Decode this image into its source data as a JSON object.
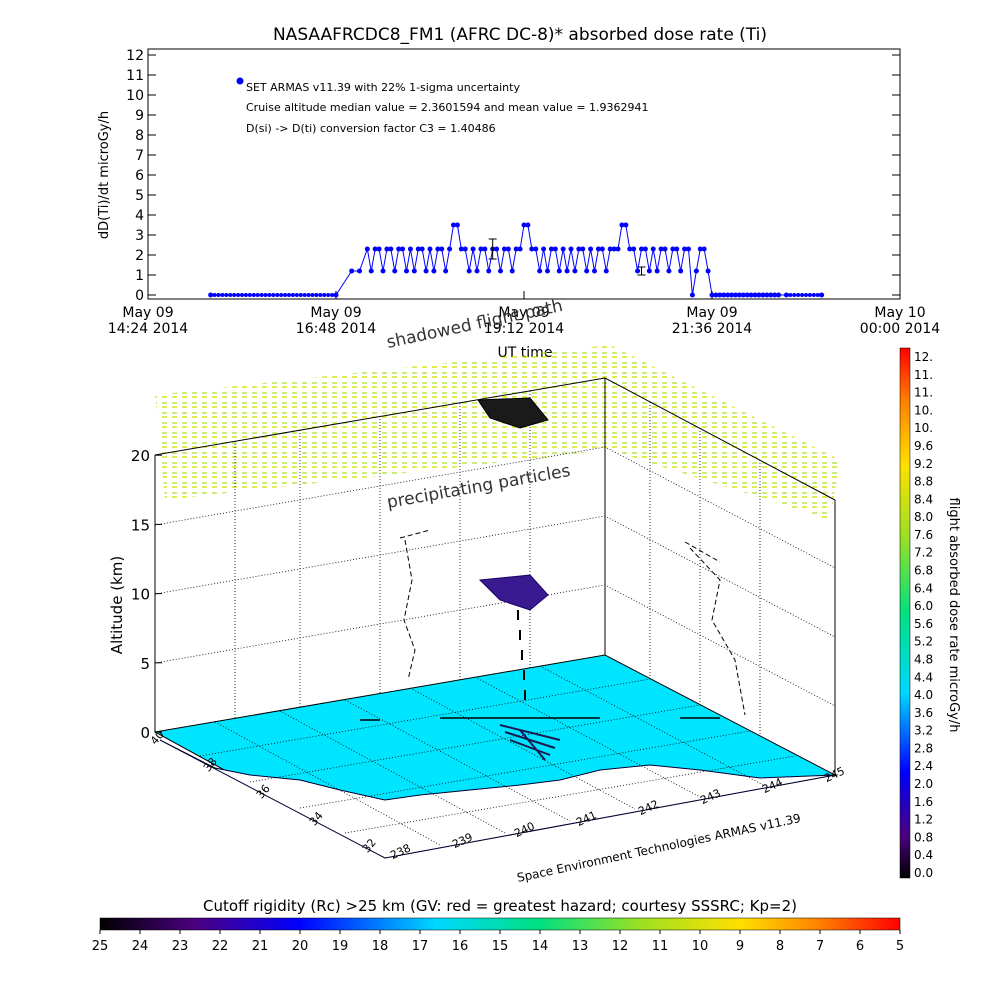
{
  "chart_data": [
    {
      "type": "line",
      "title": "NASAAFRCDC8_FM1 (AFRC DC-8)* absorbed dose rate (Ti)",
      "ylabel": "dD(Ti)/dt microGy/h",
      "xlabel": "UT time",
      "ylim": [
        0,
        12
      ],
      "yticks": [
        "0",
        "1",
        "2",
        "3",
        "4",
        "5",
        "6",
        "7",
        "8",
        "9",
        "10",
        "11",
        "12"
      ],
      "xticks": [
        {
          "top": "May 09",
          "bottom": "14:24 2014"
        },
        {
          "top": "May 09",
          "bottom": "16:48 2014"
        },
        {
          "top": "May 09",
          "bottom": "19:12 2014"
        },
        {
          "top": "May 09",
          "bottom": "21:36 2014"
        },
        {
          "top": "May 10",
          "bottom": "00:00 2014"
        }
      ],
      "xlim_hours": [
        14.4,
        24.0
      ],
      "annotations": [
        "SET ARMAS v11.39 with 22% 1-sigma uncertainty",
        "Cruise altitude median value = 2.3601594 and mean value = 1.9362941",
        "D(si) -> D(ti) conversion factor C3 = 1.40486"
      ],
      "series_color": "#0000ff",
      "x_hours": [
        15.2,
        16.8,
        17.0,
        17.1,
        17.2,
        17.25,
        17.3,
        17.35,
        17.4,
        17.45,
        17.5,
        17.55,
        17.6,
        17.65,
        17.7,
        17.75,
        17.8,
        17.85,
        17.9,
        17.95,
        18.0,
        18.05,
        18.1,
        18.15,
        18.2,
        18.25,
        18.3,
        18.35,
        18.4,
        18.45,
        18.5,
        18.55,
        18.6,
        18.65,
        18.7,
        18.75,
        18.8,
        18.85,
        18.9,
        18.95,
        19.0,
        19.05,
        19.1,
        19.15,
        19.2,
        19.25,
        19.3,
        19.35,
        19.4,
        19.45,
        19.5,
        19.55,
        19.6,
        19.65,
        19.7,
        19.75,
        19.8,
        19.85,
        19.9,
        19.95,
        20.0,
        20.05,
        20.1,
        20.15,
        20.2,
        20.25,
        20.3,
        20.35,
        20.4,
        20.45,
        20.5,
        20.55,
        20.6,
        20.65,
        20.7,
        20.75,
        20.8,
        20.85,
        20.9,
        20.95,
        21.0,
        21.05,
        21.1,
        21.15,
        21.2,
        21.25,
        21.3,
        21.35,
        21.4,
        21.45,
        21.5,
        21.55,
        21.6,
        21.65,
        21.7,
        21.75,
        21.8,
        21.85,
        21.9,
        21.95,
        22.0,
        22.05,
        22.1,
        22.15,
        22.2,
        22.25,
        22.3,
        22.35,
        22.4,
        22.45,
        22.55,
        23.0
      ],
      "y_values": [
        0,
        0,
        1.2,
        1.2,
        2.3,
        1.2,
        2.3,
        2.3,
        1.2,
        2.3,
        2.3,
        1.2,
        2.3,
        2.3,
        1.2,
        2.3,
        1.2,
        2.3,
        2.3,
        1.2,
        2.3,
        1.2,
        2.3,
        2.3,
        1.2,
        2.3,
        3.5,
        3.5,
        2.3,
        2.3,
        1.2,
        2.3,
        1.2,
        2.3,
        2.3,
        1.2,
        2.3,
        2.3,
        1.2,
        2.3,
        2.3,
        1.2,
        2.3,
        2.3,
        3.5,
        3.5,
        2.3,
        2.3,
        1.2,
        2.3,
        1.2,
        2.3,
        2.3,
        1.2,
        2.3,
        1.2,
        2.3,
        1.2,
        2.3,
        2.3,
        1.2,
        2.3,
        1.2,
        2.3,
        2.3,
        1.2,
        2.3,
        2.3,
        2.3,
        3.5,
        3.5,
        2.3,
        2.3,
        1.2,
        2.3,
        2.3,
        1.2,
        2.3,
        1.2,
        2.3,
        2.3,
        1.2,
        2.3,
        2.3,
        1.2,
        2.3,
        2.3,
        0,
        1.2,
        2.3,
        2.3,
        1.2,
        0,
        0,
        0,
        0,
        0,
        0,
        0,
        0,
        0,
        0,
        0,
        0,
        0,
        0,
        0,
        0,
        0,
        0,
        0,
        0
      ],
      "error_bars": [
        {
          "x_hours": 18.8,
          "y": 2.3,
          "lo": 1.8,
          "hi": 2.8
        },
        {
          "x_hours": 20.7,
          "y": 1.2,
          "lo": 1.0,
          "hi": 1.4
        }
      ]
    },
    {
      "type": "scatter",
      "subtype": "3d-flight-track",
      "zlabel": "Altitude (km)",
      "zticks": [
        "0",
        "5",
        "10",
        "15",
        "20"
      ],
      "xlabel": "Space Environment Technologies ARMAS v11.39",
      "xticks": [
        "238",
        "239",
        "240",
        "241",
        "242",
        "243",
        "244",
        "245"
      ],
      "yticks": [
        "32",
        "34",
        "36",
        "38",
        "40"
      ],
      "annotations": [
        "shadowed flight path",
        "precipitating particles"
      ],
      "colorbar": {
        "label": "flight absorbed dose rate microGy/h",
        "ticks": [
          "12.",
          "11.",
          "11.",
          "10.",
          "10.",
          "9.6",
          "9.2",
          "8.8",
          "8.4",
          "8.0",
          "7.6",
          "7.2",
          "6.8",
          "6.4",
          "6.0",
          "5.6",
          "5.2",
          "4.8",
          "4.4",
          "4.0",
          "3.6",
          "3.2",
          "2.8",
          "2.4",
          "2.0",
          "1.6",
          "1.2",
          "0.8",
          "0.4",
          "0.0"
        ],
        "range": [
          0,
          12.4
        ]
      },
      "ground_color": "#00e5ff",
      "precipitating_color": "#a8e030"
    },
    {
      "type": "heatmap",
      "subtype": "colorbar",
      "title": "Cutoff rigidity (Rc) >25 km (GV: red = greatest hazard; courtesy SSSRC; Kp=2)",
      "ticks": [
        "25",
        "24",
        "23",
        "22",
        "21",
        "20",
        "19",
        "18",
        "17",
        "16",
        "15",
        "14",
        "13",
        "12",
        "11",
        "10",
        "9",
        "8",
        "7",
        "6",
        "5"
      ],
      "range": [
        25,
        5
      ]
    }
  ]
}
